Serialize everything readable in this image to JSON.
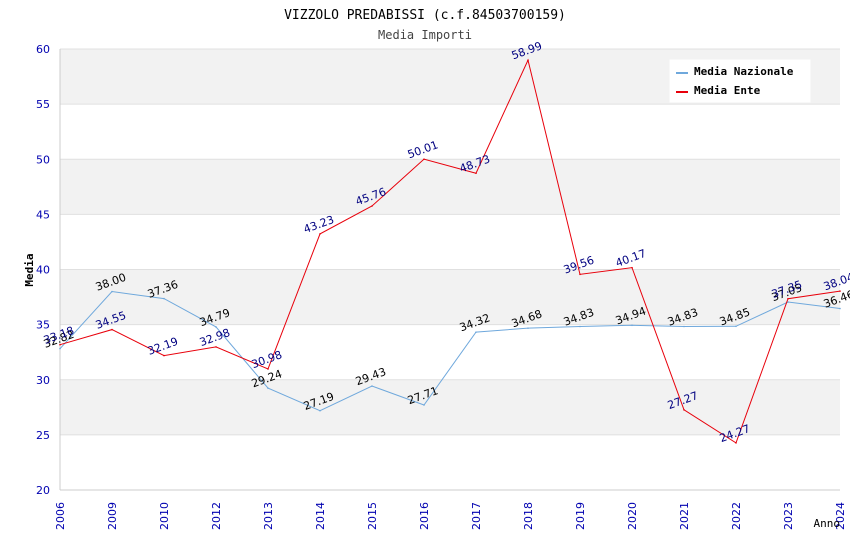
{
  "chart_data": {
    "type": "line",
    "title": "VIZZOLO PREDABISSI (c.f.84503700159)",
    "subtitle": "Media Importi",
    "xlabel": "Anno",
    "ylabel": "Media",
    "ylim": [
      20,
      60
    ],
    "yticks": [
      20,
      25,
      30,
      35,
      40,
      45,
      50,
      55,
      60
    ],
    "categories": [
      "2006",
      "2009",
      "2010",
      "2012",
      "2013",
      "2014",
      "2015",
      "2016",
      "2017",
      "2018",
      "2019",
      "2020",
      "2021",
      "2022",
      "2023",
      "2024"
    ],
    "series": [
      {
        "name": "Media Nazionale",
        "color": "#6fa8dc",
        "label_color": "#000000",
        "values": [
          32.82,
          38.0,
          37.36,
          34.79,
          29.24,
          27.19,
          29.43,
          27.71,
          34.32,
          34.68,
          34.83,
          34.94,
          34.83,
          34.85,
          37.05,
          36.46
        ],
        "labels": [
          "32.82",
          "38.00",
          "37.36",
          "34.79",
          "29.24",
          "27.19",
          "29.43",
          "27.71",
          "34.32",
          "34.68",
          "34.83",
          "34.94",
          "34.83",
          "34.85",
          "37.05",
          "36.46"
        ]
      },
      {
        "name": "Media Ente",
        "color": "#e8000b",
        "label_color": "#000080",
        "values": [
          33.18,
          34.55,
          32.19,
          32.98,
          30.98,
          43.23,
          45.76,
          50.01,
          48.73,
          58.99,
          39.56,
          40.17,
          27.27,
          24.27,
          37.35,
          38.04
        ],
        "labels": [
          "33.18",
          "34.55",
          "32.19",
          "32.98",
          "30.98",
          "43.23",
          "45.76",
          "50.01",
          "48.73",
          "58.99",
          "39.56",
          "40.17",
          "27.27",
          "24.27",
          "37.35",
          "38.04"
        ]
      }
    ],
    "legend_position": "top-right",
    "colors": {
      "band": "#f2f2f2",
      "plot_bg": "#ffffff",
      "grid": "#e0e0e0",
      "axis_text": "#0000b0",
      "title_text": "#000000",
      "subtitle_text": "#444444"
    }
  }
}
